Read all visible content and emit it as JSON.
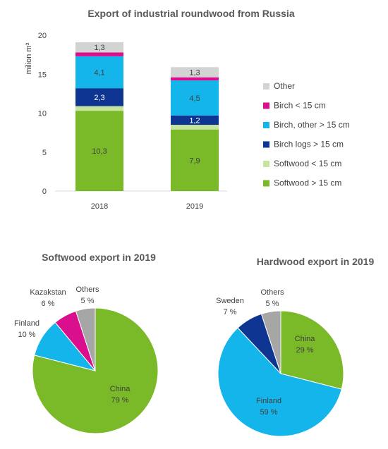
{
  "chart_data": [
    {
      "type": "bar",
      "stacked": true,
      "title": "Export of industrial roundwood from Russia",
      "ylabel": "milion m³",
      "ylim": [
        0,
        20
      ],
      "yticks": [
        0,
        5,
        10,
        15,
        20
      ],
      "grid": false,
      "legend_position": "right",
      "categories": [
        "2018",
        "2019"
      ],
      "series": [
        {
          "name": "Softwood > 15 cm",
          "color": "#7AB928",
          "values": [
            10.3,
            7.9
          ],
          "labels": [
            "10,3",
            "7,9"
          ]
        },
        {
          "name": "Softwood < 15 cm",
          "color": "#C5E59E",
          "values": [
            0.6,
            0.6
          ],
          "labels": [
            "",
            ""
          ]
        },
        {
          "name": "Birch logs > 15 cm",
          "color": "#0E3591",
          "values": [
            2.3,
            1.2
          ],
          "labels": [
            "2,3",
            "1,2"
          ]
        },
        {
          "name": "Birch, other > 15 cm",
          "color": "#13B5EA",
          "values": [
            4.1,
            4.5
          ],
          "labels": [
            "4,1",
            "4,5"
          ]
        },
        {
          "name": "Birch < 15 cm",
          "color": "#DA0F8E",
          "values": [
            0.5,
            0.4
          ],
          "labels": [
            "",
            ""
          ]
        },
        {
          "name": "Other",
          "color": "#D3D3D3",
          "values": [
            1.3,
            1.3
          ],
          "labels": [
            "1,3",
            "1,3"
          ]
        }
      ]
    },
    {
      "type": "pie",
      "title": "Softwood export in 2019",
      "slices": [
        {
          "name": "China",
          "value": 79,
          "label": "79 %",
          "color": "#7AB928"
        },
        {
          "name": "Finland",
          "value": 10,
          "label": "10 %",
          "color": "#13B5EA"
        },
        {
          "name": "Kazakstan",
          "value": 6,
          "label": "6 %",
          "color": "#DA0F8E"
        },
        {
          "name": "Others",
          "value": 5,
          "label": "5 %",
          "color": "#A6A6A6"
        }
      ]
    },
    {
      "type": "pie",
      "title": "Hardwood export in 2019",
      "slices": [
        {
          "name": "China",
          "value": 29,
          "label": "29 %",
          "color": "#7AB928"
        },
        {
          "name": "Finland",
          "value": 59,
          "label": "59 %",
          "color": "#13B5EA"
        },
        {
          "name": "Sweden",
          "value": 7,
          "label": "7 %",
          "color": "#0E3591"
        },
        {
          "name": "Others",
          "value": 5,
          "label": "5 %",
          "color": "#A6A6A6"
        }
      ]
    }
  ]
}
